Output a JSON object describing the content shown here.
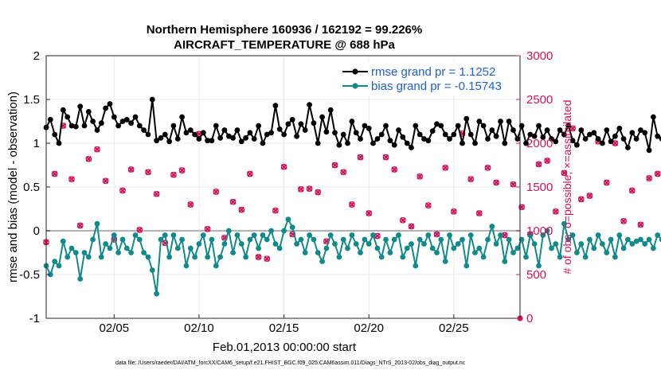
{
  "chart_data": {
    "type": "line",
    "title": "Northern Hemisphere 160936 / 162192 = 99.226%",
    "subtitle": "AIRCRAFT_TEMPERATURE @ 688 hPa",
    "xlabel": "Feb.01,2013 00:00:00 start",
    "ylabel": "rmse and bias (model - observation)",
    "ylabel_right": "# of obs: o=possible; ×=assimilated",
    "xlim": [
      1,
      28.9
    ],
    "ylim": [
      -1,
      2
    ],
    "ylim_right": [
      0,
      3000
    ],
    "x_tick_values": [
      5,
      10,
      15,
      20,
      25
    ],
    "x_tick_labels": [
      "02/05",
      "02/10",
      "02/15",
      "02/20",
      "02/25"
    ],
    "y_tick_values": [
      -1,
      -0.5,
      0,
      0.5,
      1,
      1.5,
      2
    ],
    "y_tick_labels": [
      "-1",
      "-0.5",
      "0",
      "0.5",
      "1",
      "1.5",
      "2"
    ],
    "y_right_tick_values": [
      0,
      500,
      1000,
      1500,
      2000,
      2500,
      3000
    ],
    "y_right_tick_labels": [
      "0",
      "500",
      "1000",
      "1500",
      "2000",
      "2500",
      "3000"
    ],
    "colors": {
      "rmse": "#000000",
      "bias": "#138a8a",
      "obs": "#d0135a",
      "legend_text": "#1f5fd6",
      "zero_line": "#b3b3b3"
    },
    "x_start": 1.0,
    "x_step": 0.25,
    "series": [
      {
        "name": "rmse grand pr = 1.1252",
        "axis": "left",
        "values": [
          1.18,
          1.27,
          1.1,
          1.0,
          1.38,
          1.3,
          1.2,
          1.19,
          1.42,
          1.2,
          1.36,
          1.25,
          1.15,
          1.23,
          1.4,
          1.45,
          1.3,
          1.2,
          1.25,
          1.27,
          1.23,
          1.3,
          1.2,
          1.15,
          1.1,
          1.5,
          1.03,
          1.06,
          1.1,
          1.02,
          1.2,
          1.05,
          1.3,
          1.12,
          1.15,
          1.1,
          1.05,
          1.12,
          1.03,
          1.03,
          1.2,
          1.06,
          1.15,
          1.08,
          1.06,
          1.15,
          1.02,
          1.06,
          1.12,
          1.05,
          1.2,
          1.0,
          1.1,
          1.12,
          1.43,
          1.16,
          1.1,
          1.22,
          1.27,
          1.08,
          1.22,
          1.15,
          1.44,
          1.23,
          1.0,
          1.3,
          1.13,
          1.38,
          1.12,
          0.98,
          1.1,
          1.0,
          1.25,
          1.12,
          1.05,
          1.2,
          1.17,
          1.0,
          1.05,
          1.1,
          1.2,
          1.03,
          0.98,
          1.15,
          1.07,
          1.0,
          0.95,
          1.2,
          1.1,
          1.05,
          1.03,
          1.14,
          1.22,
          1.2,
          1.1,
          1.05,
          1.1,
          1.2,
          1.0,
          1.28,
          1.1,
          1.0,
          1.25,
          1.2,
          1.05,
          1.15,
          1.08,
          1.25,
          1.0,
          1.25,
          1.15,
          1.05,
          1.2,
          1.0,
          1.1,
          1.08,
          1.2,
          1.07,
          1.15,
          1.05,
          1.02,
          1.15,
          1.1,
          1.2,
          1.03,
          0.98,
          1.15,
          1.05,
          1.1,
          1.12,
          1.05,
          1.0,
          1.15,
          1.02,
          1.08,
          1.17,
          1.05,
          0.95,
          1.12,
          1.05,
          1.15,
          1.12,
          0.92,
          1.3,
          1.08,
          1.05,
          1.05
        ]
      },
      {
        "name": "bias grand pr = -0.15743",
        "axis": "left",
        "values": [
          -0.4,
          -0.5,
          -0.35,
          -0.4,
          -0.12,
          -0.3,
          -0.2,
          -0.25,
          -0.55,
          -0.25,
          -0.3,
          -0.1,
          0.08,
          -0.3,
          -0.15,
          -0.2,
          -0.05,
          -0.25,
          -0.1,
          -0.2,
          -0.25,
          -0.05,
          -0.1,
          -0.25,
          -0.3,
          -0.45,
          -0.72,
          -0.1,
          -0.05,
          -0.3,
          -0.05,
          -0.2,
          -0.1,
          -0.4,
          -0.2,
          -0.3,
          -0.15,
          -0.05,
          -0.3,
          -0.1,
          -0.4,
          -0.3,
          -0.15,
          0.0,
          -0.25,
          -0.05,
          -0.15,
          -0.3,
          -0.1,
          -0.05,
          -0.2,
          -0.05,
          -0.1,
          0.0,
          -0.15,
          -0.2,
          0.0,
          0.13,
          0.04,
          -0.15,
          -0.1,
          -0.25,
          -0.05,
          -0.1,
          -0.25,
          -0.35,
          -0.2,
          -0.05,
          -0.15,
          -0.3,
          -0.1,
          -0.2,
          -0.05,
          -0.15,
          -0.25,
          -0.1,
          -0.15,
          -0.05,
          -0.2,
          -0.3,
          -0.1,
          -0.25,
          -0.1,
          -0.05,
          -0.3,
          -0.2,
          -0.15,
          -0.4,
          -0.1,
          -0.15,
          -0.05,
          -0.2,
          -0.25,
          -0.1,
          -0.35,
          -0.05,
          -0.2,
          -0.15,
          -0.1,
          -0.4,
          -0.05,
          -0.25,
          -0.2,
          -0.3,
          -0.1,
          0.05,
          -0.15,
          -0.05,
          -0.35,
          -0.1,
          -0.25,
          -0.2,
          -0.1,
          -0.3,
          -0.05,
          -0.15,
          -0.4,
          -0.05,
          0.0,
          -0.2,
          -0.15,
          -0.3,
          0.08,
          -0.1,
          -0.05,
          -0.25,
          -0.15,
          -0.3,
          -0.1,
          -0.2,
          -0.05,
          -0.15,
          -0.25,
          -0.1,
          -0.3,
          -0.05,
          -0.2,
          -0.1,
          -0.15,
          -0.12,
          -0.1,
          -0.15,
          -0.1,
          -0.2,
          -0.05,
          -0.1
        ]
      }
    ],
    "obs_every_n": 2,
    "obs_possible": [
      870,
      1650,
      2200,
      1590,
      1060,
      1820,
      1930,
      1570,
      900,
      1460,
      1700,
      1010,
      1670,
      1420,
      860,
      1640,
      1690,
      1300,
      2105,
      1020,
      1445,
      920,
      1330,
      1240,
      1650,
      700,
      680,
      1230,
      1730,
      960,
      1475,
      1480,
      1440,
      880,
      1750,
      1670,
      1300,
      1840,
      1200,
      940,
      1840,
      1700,
      1120,
      1050,
      1620,
      1290,
      960,
      1720,
      1220,
      2110,
      1590,
      1200,
      1720,
      1550,
      950,
      1530,
      1270,
      960,
      1760,
      1800,
      1220,
      1660,
      2170,
      1360,
      1400,
      2020,
      1550,
      2000,
      1110,
      1460,
      1070,
      1600,
      1650,
      880
    ]
  },
  "legend": {
    "rmse_label": "rmse grand pr = 1.1252",
    "bias_label": "bias grand pr = -0.15743"
  },
  "footer": {
    "data_file": "data file: /Users/raeder/DAI/ATM_forcXX/CAM6_setup/f.e21.FHIST_BGC.f09_025.CAM6assim.011/Diags_NTrS_2013-02/obs_diag_output.nc"
  }
}
